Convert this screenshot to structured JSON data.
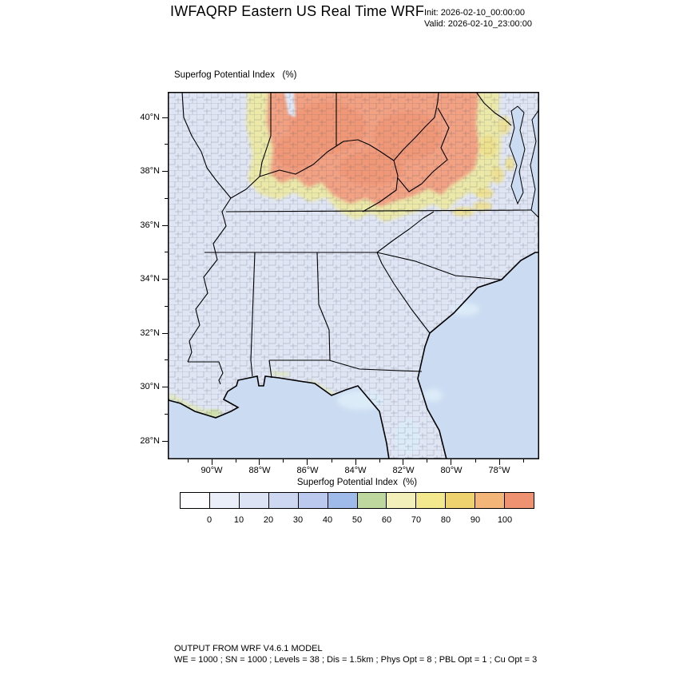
{
  "header": {
    "title": "IWFAQRP Eastern US Real Time WRF",
    "init_label": "Init: 2026-02-10_00:00:00",
    "valid_label": "Valid: 2026-02-10_23:00:00"
  },
  "map": {
    "subtitle": "Superfog Potential Index   (%)",
    "lat_ticks": [
      {
        "label": "40°N",
        "pos": 0.0696
      },
      {
        "label": "38°N",
        "pos": 0.2165
      },
      {
        "label": "36°N",
        "pos": 0.3635
      },
      {
        "label": "34°N",
        "pos": 0.5103
      },
      {
        "label": "32°N",
        "pos": 0.6572
      },
      {
        "label": "30°N",
        "pos": 0.804
      },
      {
        "label": "28°N",
        "pos": 0.9509
      }
    ],
    "lat_minor_ticks": [
      0.143,
      0.2898,
      0.4366,
      0.5833,
      0.73,
      0.8767
    ],
    "lon_ticks": [
      {
        "label": "90°W",
        "pos": 0.1183
      },
      {
        "label": "88°W",
        "pos": 0.2473
      },
      {
        "label": "86°W",
        "pos": 0.3763
      },
      {
        "label": "84°W",
        "pos": 0.5054
      },
      {
        "label": "82°W",
        "pos": 0.6344
      },
      {
        "label": "80°W",
        "pos": 0.7634
      },
      {
        "label": "78°W",
        "pos": 0.8925
      }
    ],
    "lon_minor_ticks": [
      0.0538,
      0.1828,
      0.3118,
      0.4409,
      0.5699,
      0.6989,
      0.828,
      0.957
    ]
  },
  "colorbar": {
    "title": "Superfog Potential Index  (%)",
    "tick_labels": [
      "0",
      "10",
      "20",
      "30",
      "40",
      "50",
      "60",
      "70",
      "80",
      "90",
      "100"
    ],
    "colors": [
      "#fdfdff",
      "#eaeef9",
      "#dce3f5",
      "#cdd7f1",
      "#bac9ed",
      "#9fbbe9",
      "#bed79f",
      "#f2efba",
      "#f3e88d",
      "#eed26f",
      "#f3b678",
      "#ef9272"
    ]
  },
  "map_colors": {
    "ocean": "#cbdcf2",
    "land": "#e0e5f4",
    "spi_high": "#f2a183",
    "spi_highest": "#ee8f6d",
    "spi_fringe": "#ede9a0",
    "coast_fringe": "#dfe8b0"
  },
  "footer": {
    "line1": "OUTPUT FROM WRF V4.6.1 MODEL",
    "line2": "WE = 1000 ; SN = 1000 ; Levels = 38 ; Dis = 1.5km ; Phys Opt = 8 ; PBL Opt = 1 ; Cu Opt = 3"
  }
}
